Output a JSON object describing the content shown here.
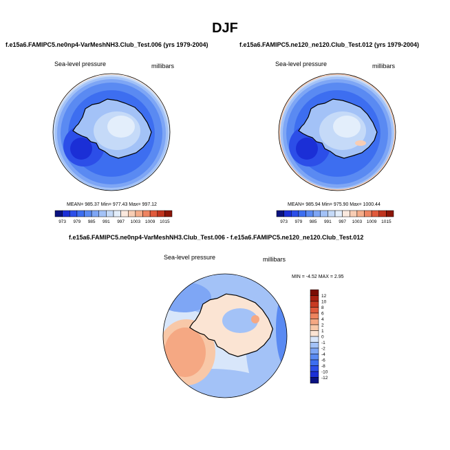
{
  "page_title": "DJF",
  "panels": [
    {
      "case_title": "f.e15a6.FAMIPC5.ne0np4-VarMeshNH3.Club_Test.006 (yrs 1979-2004)",
      "variable": "Sea-level pressure",
      "units": "millibars",
      "stats": "MEAN= 985.37   Min= 977.43   Max= 997.12",
      "colorbar_labels": [
        "973",
        "979",
        "985",
        "991",
        "997",
        "1003",
        "1009",
        "1015"
      ]
    },
    {
      "case_title": "f.e15a6.FAMIPC5.ne120_ne120.Club_Test.012 (yrs 1979-2004)",
      "variable": "Sea-level pressure",
      "units": "millibars",
      "stats": "MEAN= 985.94   Min= 975.90   Max= 1000.44",
      "colorbar_labels": [
        "973",
        "979",
        "985",
        "991",
        "997",
        "1003",
        "1009",
        "1015"
      ]
    },
    {
      "case_title": "f.e15a6.FAMIPC5.ne0np4-VarMeshNH3.Club_Test.006 - f.e15a6.FAMIPC5.ne120_ne120.Club_Test.012",
      "variable": "Sea-level pressure",
      "units": "millibars",
      "stats": "MIN =  -4.52  MAX =    2.95",
      "colorbar_labels": [
        "12",
        "10",
        "8",
        "6",
        "4",
        "2",
        "1",
        "0",
        "-1",
        "-2",
        "-4",
        "-6",
        "-8",
        "-10",
        "-12"
      ]
    }
  ],
  "chart_data": [
    {
      "type": "heatmap",
      "title": "f.e15a6.FAMIPC5.ne0np4-VarMeshNH3.Club_Test.006 (yrs 1979-2004)",
      "subtitle": "Sea-level pressure",
      "units": "millibars",
      "projection": "south polar stereographic",
      "levels": [
        973,
        976,
        979,
        982,
        985,
        988,
        991,
        994,
        997,
        1000,
        1003,
        1006,
        1009,
        1012,
        1015
      ],
      "colors": [
        "#0a1280",
        "#1b2fd6",
        "#2c4ee8",
        "#3d6ef0",
        "#5a8af2",
        "#7ea6f5",
        "#a3c2f7",
        "#c5daf8",
        "#e3eefb",
        "#fbe9de",
        "#f8cdb4",
        "#f5ad8a",
        "#ee8461",
        "#e05a3c",
        "#c0351f",
        "#8c1608"
      ],
      "mean": 985.37,
      "min": 977.43,
      "max": 997.12
    },
    {
      "type": "heatmap",
      "title": "f.e15a6.FAMIPC5.ne120_ne120.Club_Test.012 (yrs 1979-2004)",
      "subtitle": "Sea-level pressure",
      "units": "millibars",
      "projection": "south polar stereographic",
      "levels": [
        973,
        976,
        979,
        982,
        985,
        988,
        991,
        994,
        997,
        1000,
        1003,
        1006,
        1009,
        1012,
        1015
      ],
      "colors": [
        "#0a1280",
        "#1b2fd6",
        "#2c4ee8",
        "#3d6ef0",
        "#5a8af2",
        "#7ea6f5",
        "#a3c2f7",
        "#c5daf8",
        "#e3eefb",
        "#fbe9de",
        "#f8cdb4",
        "#f5ad8a",
        "#ee8461",
        "#e05a3c",
        "#c0351f",
        "#8c1608"
      ],
      "mean": 985.94,
      "min": 975.9,
      "max": 1000.44
    },
    {
      "type": "heatmap",
      "title": "f.e15a6.FAMIPC5.ne0np4-VarMeshNH3.Club_Test.006 - f.e15a6.FAMIPC5.ne120_ne120.Club_Test.012",
      "subtitle": "Sea-level pressure",
      "units": "millibars",
      "projection": "south polar stereographic",
      "levels": [
        -12,
        -10,
        -8,
        -6,
        -4,
        -2,
        -1,
        0,
        1,
        2,
        4,
        6,
        8,
        10,
        12
      ],
      "colors": [
        "#0a1280",
        "#1b2fd6",
        "#2c4ee8",
        "#3d6ef0",
        "#5a8af2",
        "#7ea6f5",
        "#a3c2f7",
        "#d8e6fa",
        "#fbe4d3",
        "#f8c8a8",
        "#f5a883",
        "#ee845f",
        "#e05a3c",
        "#c83a22",
        "#a82012",
        "#7a0c04"
      ],
      "min": -4.52,
      "max": 2.95
    }
  ]
}
